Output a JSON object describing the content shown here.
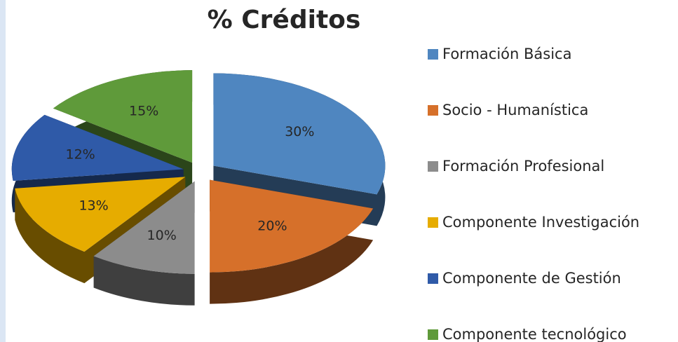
{
  "chart_data": {
    "type": "pie",
    "title": "% Créditos",
    "categories": [
      "Formación Básica",
      "Socio - Humanística",
      "Formación Profesional",
      "Componente Investigación",
      "Componente de Gestión",
      "Componente tecnológico"
    ],
    "values": [
      30,
      20,
      10,
      13,
      12,
      15
    ],
    "value_labels": [
      "30%",
      "20%",
      "10%",
      "13%",
      "12%",
      "15%"
    ],
    "colors": [
      "#4f86c0",
      "#d6702a",
      "#8c8c8c",
      "#e6ac00",
      "#2f5aa8",
      "#5f9a3a"
    ],
    "legend": "right"
  }
}
